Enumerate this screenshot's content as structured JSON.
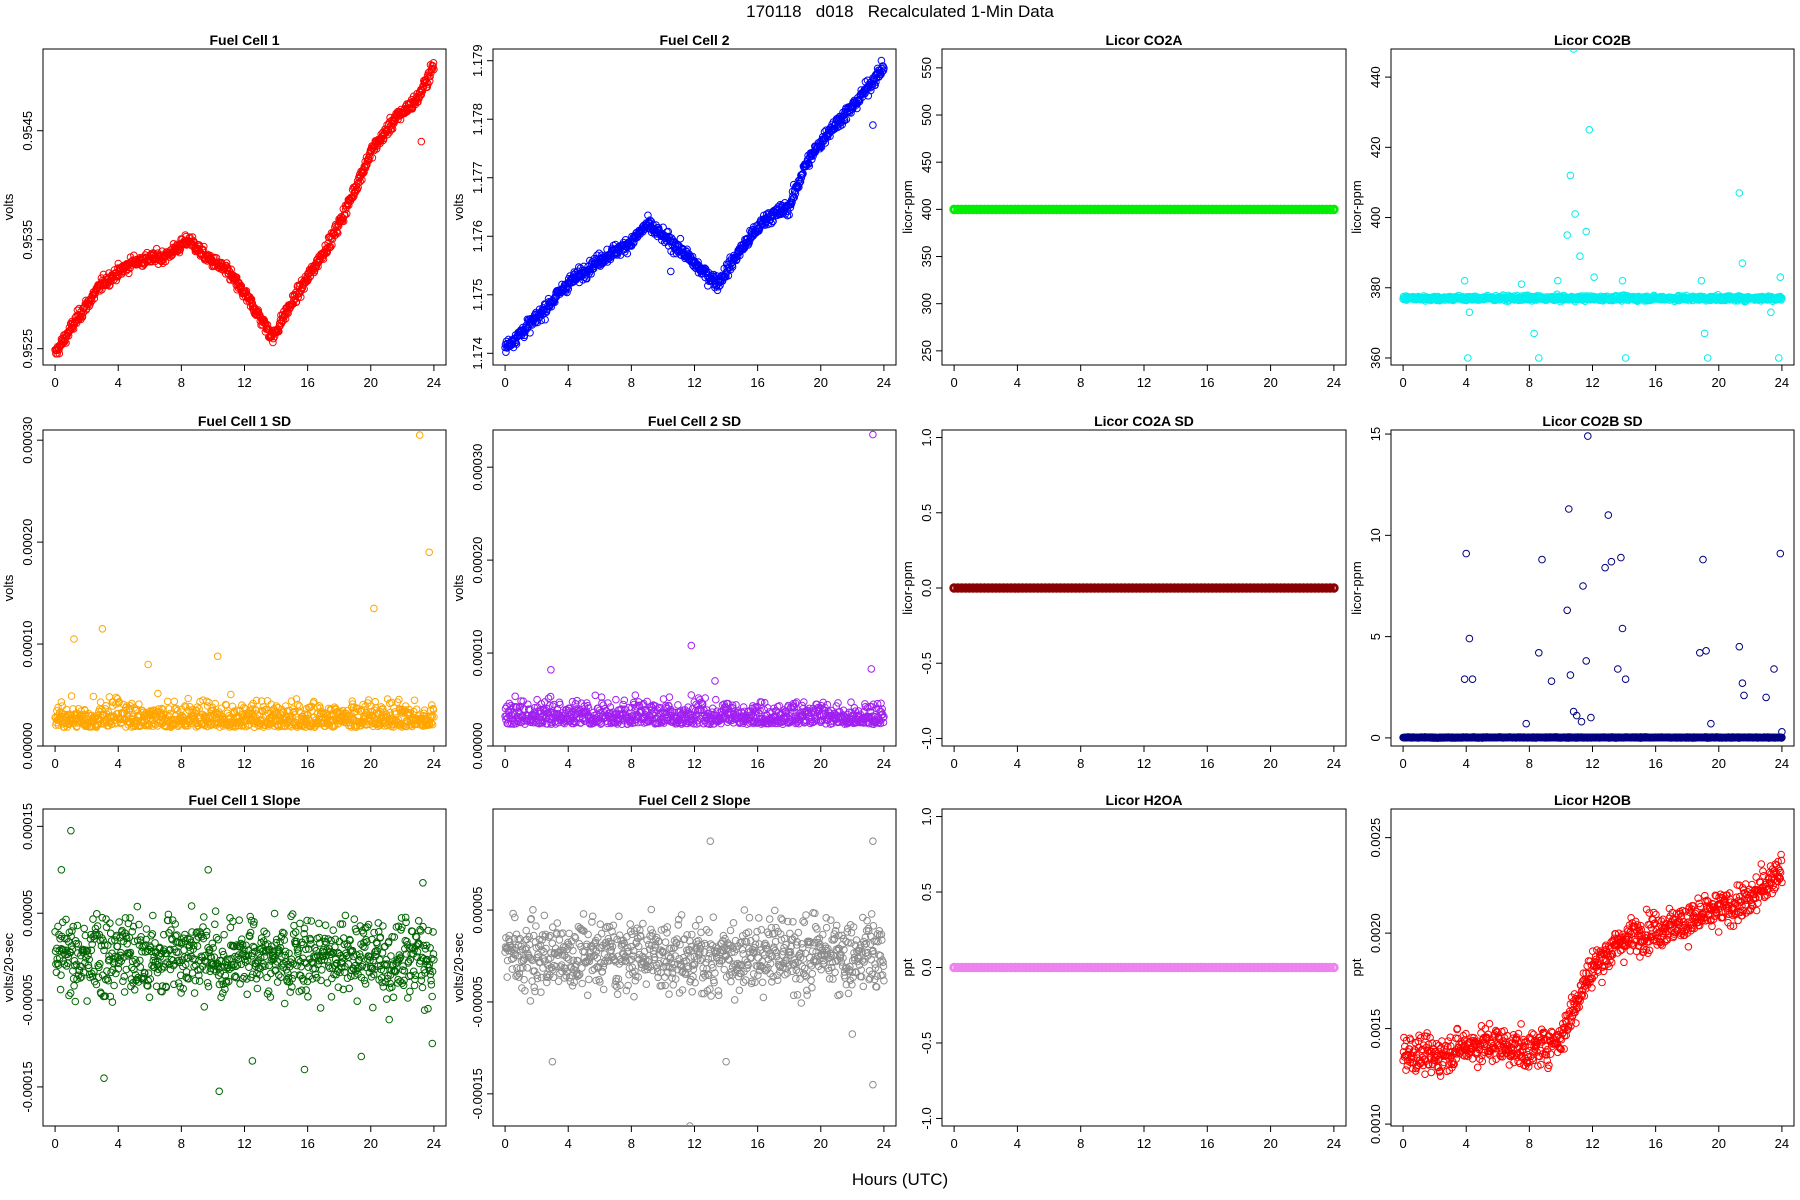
{
  "figure": {
    "title": "170118   d018   Recalculated 1-Min Data",
    "xlabel": "Hours (UTC)"
  },
  "chart_data": [
    {
      "id": "fc1",
      "type": "scatter",
      "title": "Fuel Cell 1",
      "ylabel": "volts",
      "color": "#ff0000",
      "xlim": [
        0,
        24
      ],
      "xticks": [
        0,
        4,
        8,
        12,
        16,
        20,
        24
      ],
      "ylim": [
        0.95235,
        0.95525
      ],
      "yticks": [
        0.9525,
        0.9535,
        0.9545
      ],
      "ytick_labels": [
        "0.9525",
        "0.9535",
        "0.9545"
      ],
      "series": {
        "kind": "path",
        "pts": [
          [
            0,
            0.95245
          ],
          [
            1.5,
            0.9528
          ],
          [
            3,
            0.9531
          ],
          [
            5,
            0.9533
          ],
          [
            7,
            0.95335
          ],
          [
            8.5,
            0.9535
          ],
          [
            9.5,
            0.95335
          ],
          [
            11,
            0.9532
          ],
          [
            12.5,
            0.9529
          ],
          [
            13.8,
            0.9526
          ],
          [
            14.5,
            0.9528
          ],
          [
            16,
            0.95315
          ],
          [
            17.5,
            0.9535
          ],
          [
            18.5,
            0.9538
          ],
          [
            20,
            0.9543
          ],
          [
            21.5,
            0.9546
          ],
          [
            23,
            0.9548
          ],
          [
            24,
            0.9551
          ]
        ],
        "noise": 5e-05,
        "outliers": [
          [
            23.2,
            0.9544
          ]
        ]
      }
    },
    {
      "id": "fc2",
      "type": "scatter",
      "title": "Fuel Cell 2",
      "ylabel": "volts",
      "color": "#0000ff",
      "xlim": [
        0,
        24
      ],
      "xticks": [
        0,
        4,
        8,
        12,
        16,
        20,
        24
      ],
      "ylim": [
        1.1738,
        1.1792
      ],
      "yticks": [
        1.174,
        1.175,
        1.176,
        1.177,
        1.178,
        1.179
      ],
      "ytick_labels": [
        "1.174",
        "1.175",
        "1.176",
        "1.177",
        "1.178",
        "1.179"
      ],
      "series": {
        "kind": "path",
        "pts": [
          [
            0,
            1.1741
          ],
          [
            2,
            1.1746
          ],
          [
            4,
            1.1752
          ],
          [
            6,
            1.1756
          ],
          [
            8,
            1.1759
          ],
          [
            9,
            1.1762
          ],
          [
            11,
            1.1758
          ],
          [
            12.5,
            1.1754
          ],
          [
            13.5,
            1.1752
          ],
          [
            15,
            1.1758
          ],
          [
            16.5,
            1.1763
          ],
          [
            18,
            1.1765
          ],
          [
            19,
            1.1772
          ],
          [
            20.5,
            1.1778
          ],
          [
            22,
            1.1782
          ],
          [
            24,
            1.1789
          ]
        ],
        "noise": 0.0001,
        "outliers": [
          [
            10.5,
            1.1754
          ],
          [
            23.3,
            1.1779
          ]
        ]
      }
    },
    {
      "id": "co2a",
      "type": "scatter",
      "title": "Licor CO2A",
      "ylabel": "licor-ppm",
      "color": "#00ee00",
      "xlim": [
        0,
        24
      ],
      "xticks": [
        0,
        4,
        8,
        12,
        16,
        20,
        24
      ],
      "ylim": [
        235,
        570
      ],
      "yticks": [
        250,
        300,
        350,
        400,
        450,
        500,
        550
      ],
      "ytick_labels": [
        "250",
        "300",
        "350",
        "400",
        "450",
        "500",
        "550"
      ],
      "series": {
        "kind": "flat",
        "value": 400,
        "thick": true
      }
    },
    {
      "id": "co2b",
      "type": "scatter",
      "title": "Licor CO2B",
      "ylabel": "licor-ppm",
      "color": "#00eeee",
      "xlim": [
        0,
        24
      ],
      "xticks": [
        0,
        4,
        8,
        12,
        16,
        20,
        24
      ],
      "ylim": [
        358,
        448
      ],
      "yticks": [
        360,
        380,
        400,
        420,
        440
      ],
      "ytick_labels": [
        "360",
        "380",
        "400",
        "420",
        "440"
      ],
      "series": {
        "kind": "flat",
        "value": 377,
        "noise": 0.6,
        "outliers": [
          [
            3.9,
            382
          ],
          [
            4.1,
            360
          ],
          [
            4.2,
            373
          ],
          [
            7.5,
            381
          ],
          [
            8.3,
            367
          ],
          [
            8.6,
            360
          ],
          [
            9.8,
            382
          ],
          [
            10.4,
            395
          ],
          [
            10.6,
            412
          ],
          [
            10.8,
            448
          ],
          [
            10.9,
            401
          ],
          [
            11.2,
            389
          ],
          [
            11.6,
            396
          ],
          [
            11.8,
            425
          ],
          [
            12.1,
            383
          ],
          [
            13.9,
            382
          ],
          [
            14.1,
            360
          ],
          [
            18.9,
            382
          ],
          [
            19.1,
            367
          ],
          [
            19.3,
            360
          ],
          [
            21.3,
            407
          ],
          [
            21.5,
            387
          ],
          [
            23.3,
            373
          ],
          [
            23.8,
            360
          ],
          [
            23.9,
            383
          ]
        ]
      }
    },
    {
      "id": "fc1sd",
      "type": "scatter",
      "title": "Fuel Cell 1 SD",
      "ylabel": "volts",
      "color": "#ffa500",
      "xlim": [
        0,
        24
      ],
      "xticks": [
        0,
        4,
        8,
        12,
        16,
        20,
        24
      ],
      "ylim": [
        0,
        0.00031
      ],
      "yticks": [
        0,
        0.0001,
        0.0002,
        0.0003
      ],
      "ytick_labels": [
        "0.00000",
        "0.00010",
        "0.00020",
        "0.00030"
      ],
      "series": {
        "kind": "scatter",
        "base": 2.5e-05,
        "spread": 2.2e-05,
        "outliers": [
          [
            1.2,
            0.000105
          ],
          [
            3.0,
            0.000115
          ],
          [
            5.9,
            8e-05
          ],
          [
            10.3,
            8.8e-05
          ],
          [
            20.2,
            0.000135
          ],
          [
            23.1,
            0.000305
          ],
          [
            23.7,
            0.00019
          ]
        ]
      }
    },
    {
      "id": "fc2sd",
      "type": "scatter",
      "title": "Fuel Cell 2 SD",
      "ylabel": "volts",
      "color": "#a020f0",
      "xlim": [
        0,
        24
      ],
      "xticks": [
        0,
        4,
        8,
        12,
        16,
        20,
        24
      ],
      "ylim": [
        0,
        0.00034
      ],
      "yticks": [
        0,
        0.0001,
        0.0002,
        0.0003
      ],
      "ytick_labels": [
        "0.00000",
        "0.00010",
        "0.00020",
        "0.00030"
      ],
      "series": {
        "kind": "scatter",
        "base": 3e-05,
        "spread": 2.2e-05,
        "outliers": [
          [
            2.9,
            8.2e-05
          ],
          [
            11.8,
            0.000108
          ],
          [
            13.3,
            7e-05
          ],
          [
            23.2,
            8.3e-05
          ],
          [
            23.3,
            0.000335
          ]
        ]
      }
    },
    {
      "id": "co2asd",
      "type": "scatter",
      "title": "Licor CO2A SD",
      "ylabel": "licor-ppm",
      "color": "#8b0000",
      "xlim": [
        0,
        24
      ],
      "xticks": [
        0,
        4,
        8,
        12,
        16,
        20,
        24
      ],
      "ylim": [
        -1.05,
        1.05
      ],
      "yticks": [
        -1,
        -0.5,
        0,
        0.5,
        1
      ],
      "ytick_labels": [
        "-1.0",
        "-0.5",
        "0.0",
        "0.5",
        "1.0"
      ],
      "series": {
        "kind": "flat",
        "value": 0,
        "thick": true
      }
    },
    {
      "id": "co2bsd",
      "type": "scatter",
      "title": "Licor CO2B SD",
      "ylabel": "licor-ppm",
      "color": "#000080",
      "xlim": [
        0,
        24
      ],
      "xticks": [
        0,
        4,
        8,
        12,
        16,
        20,
        24
      ],
      "ylim": [
        -0.4,
        15.2
      ],
      "yticks": [
        0,
        5,
        10,
        15
      ],
      "ytick_labels": [
        "0",
        "5",
        "10",
        "15"
      ],
      "series": {
        "kind": "flat",
        "value": 0.02,
        "noise": 0.02,
        "outliers": [
          [
            3.9,
            2.9
          ],
          [
            4.0,
            9.1
          ],
          [
            4.2,
            4.9
          ],
          [
            4.4,
            2.9
          ],
          [
            7.8,
            0.7
          ],
          [
            8.6,
            4.2
          ],
          [
            8.8,
            8.8
          ],
          [
            9.4,
            2.8
          ],
          [
            10.4,
            6.3
          ],
          [
            10.5,
            11.3
          ],
          [
            10.6,
            3.1
          ],
          [
            10.8,
            1.3
          ],
          [
            11.0,
            1.1
          ],
          [
            11.3,
            0.8
          ],
          [
            11.4,
            7.5
          ],
          [
            11.6,
            3.8
          ],
          [
            11.7,
            14.9
          ],
          [
            11.9,
            1.0
          ],
          [
            12.8,
            8.4
          ],
          [
            13.0,
            11.0
          ],
          [
            13.2,
            8.7
          ],
          [
            13.6,
            3.4
          ],
          [
            13.8,
            8.9
          ],
          [
            13.9,
            5.4
          ],
          [
            14.1,
            2.9
          ],
          [
            18.8,
            4.2
          ],
          [
            19.0,
            8.8
          ],
          [
            19.2,
            4.3
          ],
          [
            19.5,
            0.7
          ],
          [
            21.3,
            4.5
          ],
          [
            21.5,
            2.7
          ],
          [
            21.6,
            2.1
          ],
          [
            23.0,
            2.0
          ],
          [
            23.5,
            3.4
          ],
          [
            23.9,
            9.1
          ],
          [
            24.0,
            0.3
          ]
        ]
      }
    },
    {
      "id": "fc1slope",
      "type": "scatter",
      "title": "Fuel Cell 1 Slope",
      "ylabel": "volts/20-sec",
      "color": "#006400",
      "xlim": [
        0,
        24
      ],
      "xticks": [
        0,
        4,
        8,
        12,
        16,
        20,
        24
      ],
      "ylim": [
        -0.000195,
        0.00017
      ],
      "yticks": [
        -0.00015,
        -5e-05,
        5e-05,
        0.00015
      ],
      "ytick_labels": [
        "-0.00015",
        "-0.00005",
        "0.00005",
        "0.00015"
      ],
      "series": {
        "kind": "scatter",
        "base": 0.0,
        "spread": 3.5e-05,
        "outliers": [
          [
            1.0,
            0.000145
          ],
          [
            0.4,
            0.0001
          ],
          [
            3.1,
            -0.00014
          ],
          [
            9.7,
            0.0001
          ],
          [
            10.4,
            -0.000155
          ],
          [
            12.5,
            -0.00012
          ],
          [
            15.8,
            -0.00013
          ],
          [
            19.4,
            -0.000115
          ],
          [
            23.3,
            8.5e-05
          ],
          [
            23.9,
            -0.0001
          ]
        ]
      }
    },
    {
      "id": "fc2slope",
      "type": "scatter",
      "title": "Fuel Cell 2 Slope",
      "ylabel": "volts/20-sec",
      "color": "#8c8c8c",
      "xlim": [
        0,
        24
      ],
      "xticks": [
        0,
        4,
        8,
        12,
        16,
        20,
        24
      ],
      "ylim": [
        -0.000185,
        0.00016
      ],
      "yticks": [
        -0.00015,
        -5e-05,
        5e-05
      ],
      "ytick_labels": [
        "-0.00015",
        "-0.00005",
        "0.00005"
      ],
      "series": {
        "kind": "scatter",
        "base": 0.0,
        "spread": 3e-05,
        "outliers": [
          [
            3.0,
            -0.000115
          ],
          [
            11.7,
            -0.000185
          ],
          [
            13.0,
            0.000125
          ],
          [
            14.0,
            -0.000115
          ],
          [
            23.3,
            0.000125
          ],
          [
            23.3,
            -0.00014
          ],
          [
            22.0,
            -8.5e-05
          ]
        ]
      }
    },
    {
      "id": "h2oa",
      "type": "scatter",
      "title": "Licor H2OA",
      "ylabel": "ppt",
      "color": "#ee82ee",
      "xlim": [
        0,
        24
      ],
      "xticks": [
        0,
        4,
        8,
        12,
        16,
        20,
        24
      ],
      "ylim": [
        -1.05,
        1.05
      ],
      "yticks": [
        -1,
        -0.5,
        0,
        0.5,
        1
      ],
      "ytick_labels": [
        "-1.0",
        "-0.5",
        "0.0",
        "0.5",
        "1.0"
      ],
      "series": {
        "kind": "flat",
        "value": 0,
        "thick": true
      }
    },
    {
      "id": "h2ob",
      "type": "scatter",
      "title": "Licor H2OB",
      "ylabel": "ppt",
      "color": "#ff0000",
      "xlim": [
        0,
        24
      ],
      "xticks": [
        0,
        4,
        8,
        12,
        16,
        20,
        24
      ],
      "ylim": [
        0.00099,
        0.00265
      ],
      "yticks": [
        0.001,
        0.0015,
        0.002,
        0.0025
      ],
      "ytick_labels": [
        "0.0010",
        "0.0015",
        "0.0020",
        "0.0025"
      ],
      "series": {
        "kind": "path",
        "pts": [
          [
            0,
            0.00138
          ],
          [
            2,
            0.00135
          ],
          [
            4,
            0.00141
          ],
          [
            6,
            0.00142
          ],
          [
            8,
            0.00138
          ],
          [
            10,
            0.00145
          ],
          [
            11,
            0.00165
          ],
          [
            12,
            0.00182
          ],
          [
            14,
            0.00197
          ],
          [
            16,
            0.00202
          ],
          [
            18,
            0.00206
          ],
          [
            20,
            0.00212
          ],
          [
            22,
            0.00217
          ],
          [
            24,
            0.00235
          ]
        ],
        "noise": 8e-05
      }
    }
  ]
}
